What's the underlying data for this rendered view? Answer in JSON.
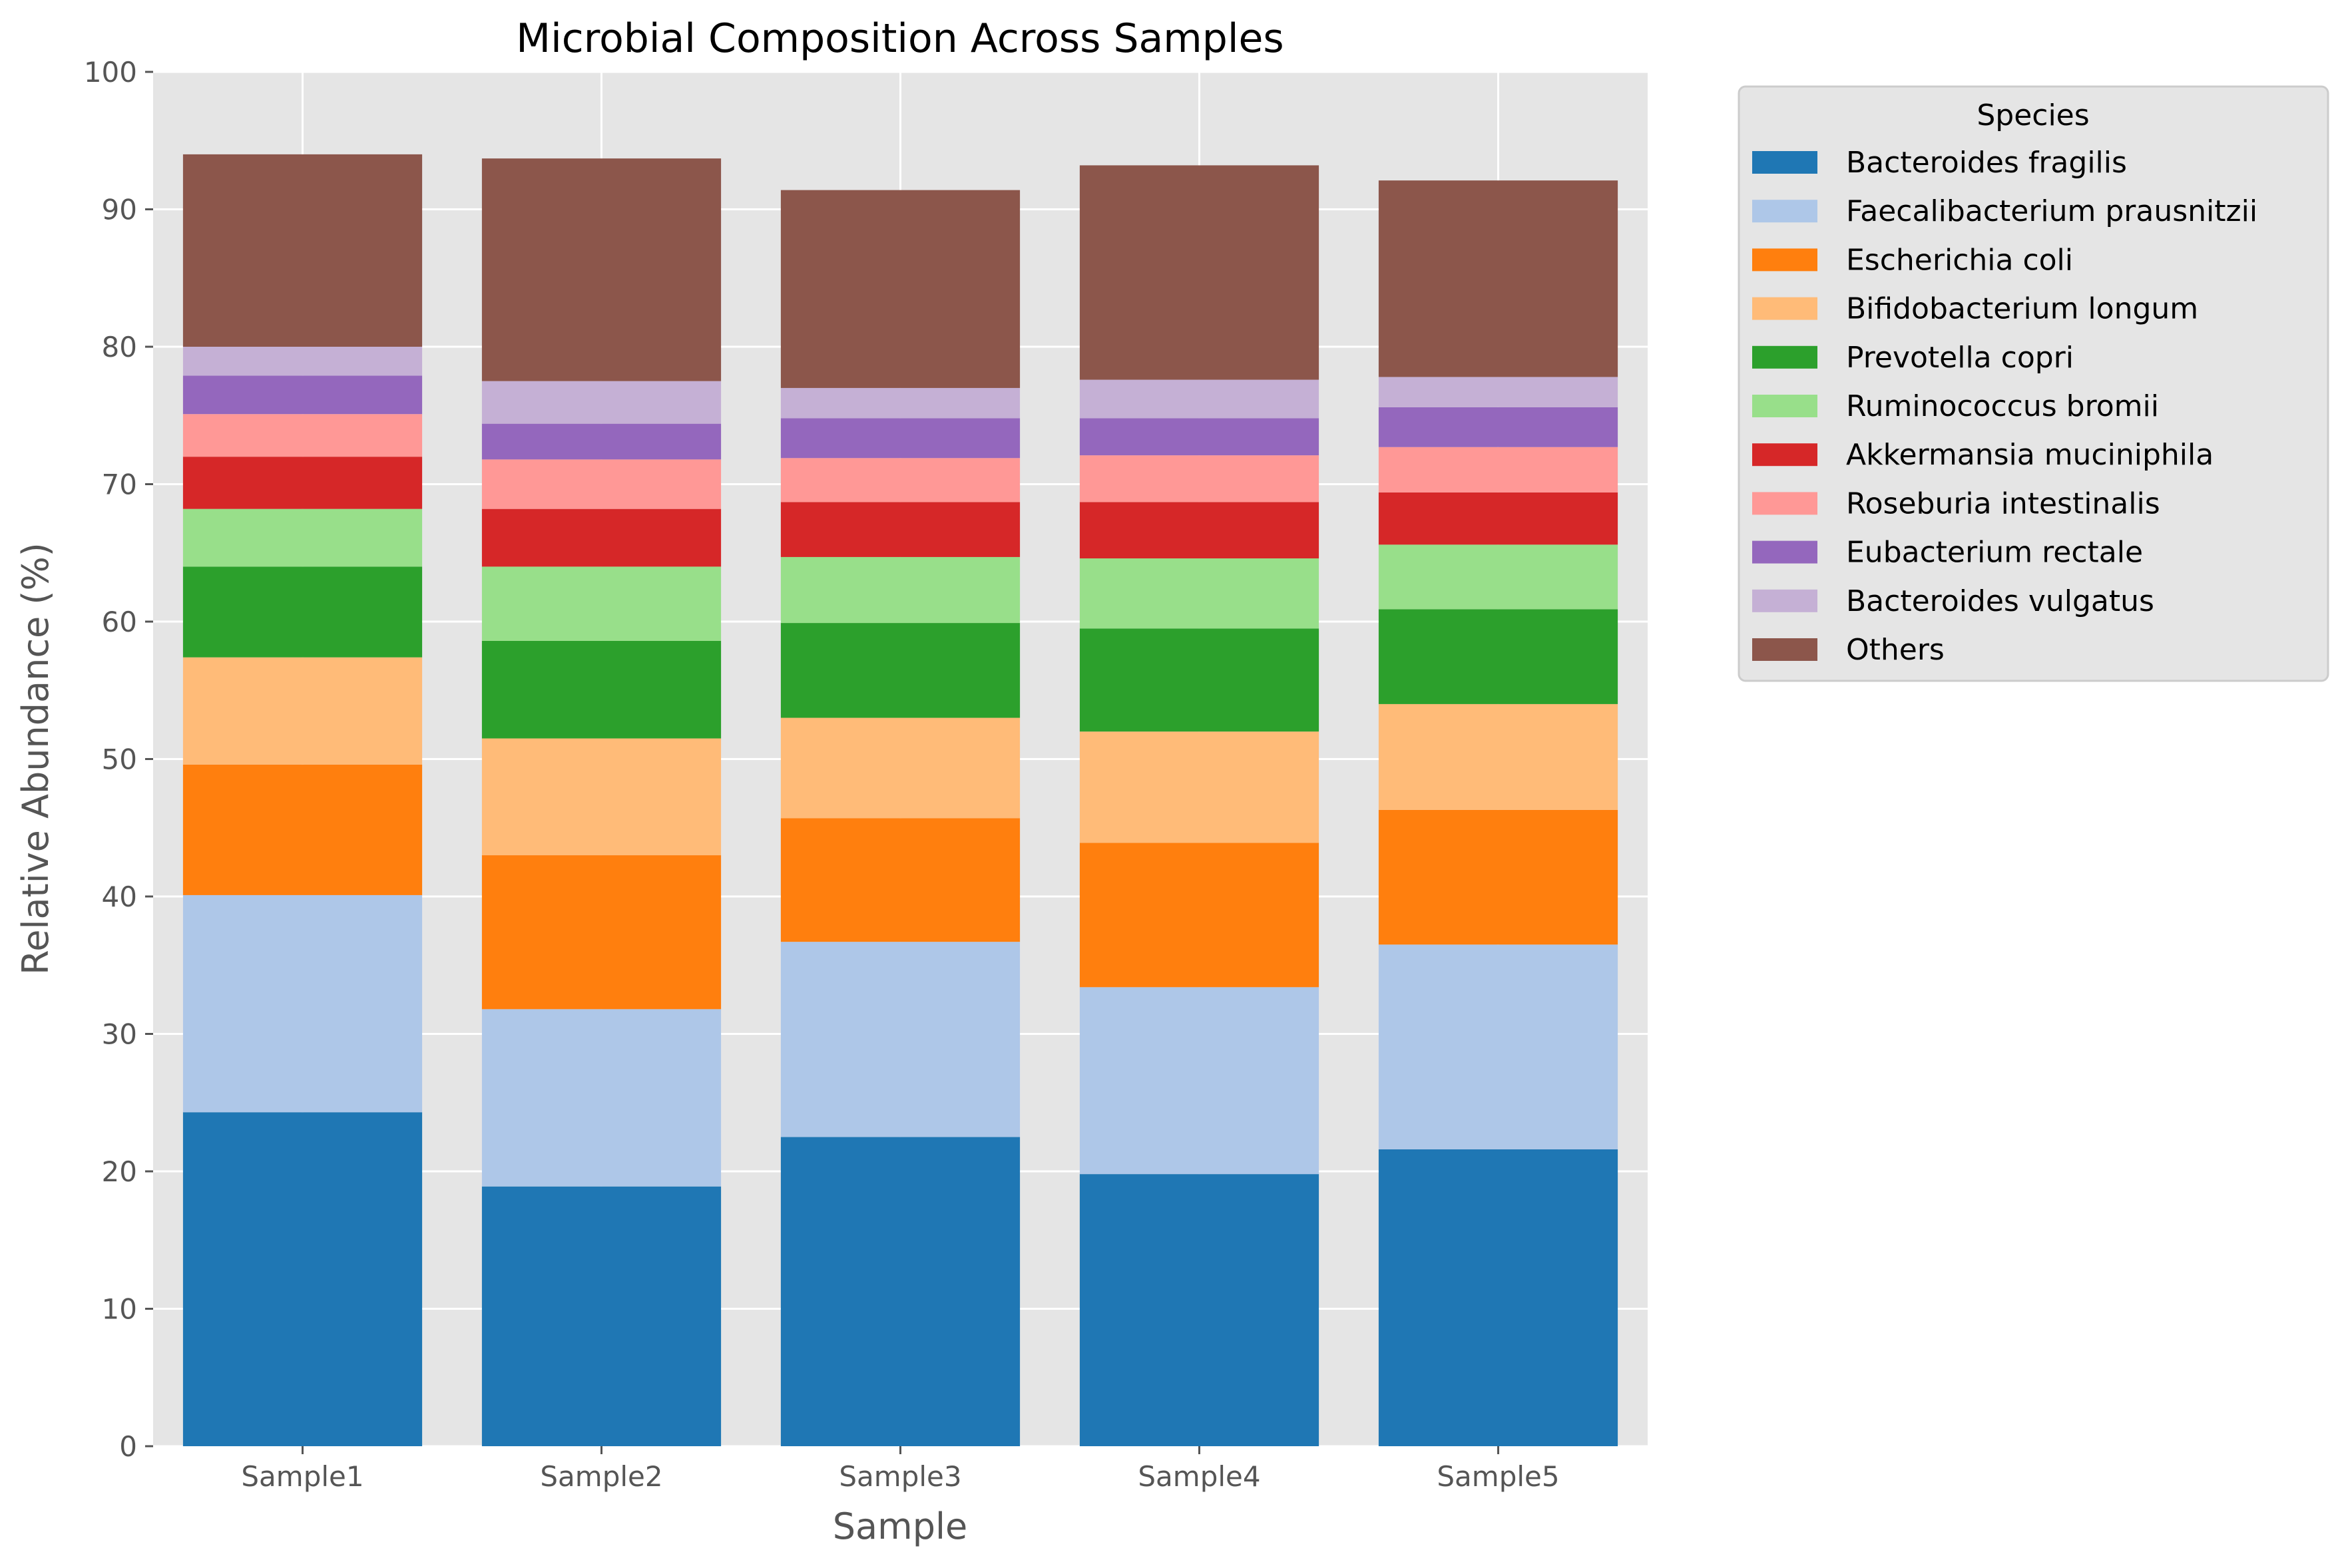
{
  "chart_data": {
    "type": "bar",
    "stacked": true,
    "title": "Microbial Composition Across Samples",
    "xlabel": "Sample",
    "ylabel": "Relative Abundance (%)",
    "ylim": [
      0,
      100
    ],
    "yticks": [
      0,
      10,
      20,
      30,
      40,
      50,
      60,
      70,
      80,
      90,
      100
    ],
    "grid": true,
    "categories": [
      "Sample1",
      "Sample2",
      "Sample3",
      "Sample4",
      "Sample5"
    ],
    "legend": {
      "title": "Species",
      "placement": "outside-right-top"
    },
    "series": [
      {
        "name": "Bacteroides fragilis",
        "color": "#1f77b4",
        "values": [
          24.3,
          18.9,
          22.5,
          19.8,
          21.6
        ]
      },
      {
        "name": "Faecalibacterium prausnitzii",
        "color": "#aec7e8",
        "values": [
          15.8,
          12.9,
          14.2,
          13.6,
          14.9
        ]
      },
      {
        "name": "Escherichia coli",
        "color": "#ff7f0e",
        "values": [
          9.5,
          11.2,
          9.0,
          10.5,
          9.8
        ]
      },
      {
        "name": "Bifidobacterium longum",
        "color": "#ffbb78",
        "values": [
          7.8,
          8.5,
          7.3,
          8.1,
          7.7
        ]
      },
      {
        "name": "Prevotella copri",
        "color": "#2ca02c",
        "values": [
          6.6,
          7.1,
          6.9,
          7.5,
          6.9
        ]
      },
      {
        "name": "Ruminococcus bromii",
        "color": "#98df8a",
        "values": [
          4.2,
          5.4,
          4.8,
          5.1,
          4.7
        ]
      },
      {
        "name": "Akkermansia muciniphila",
        "color": "#d62728",
        "values": [
          3.8,
          4.2,
          4.0,
          4.1,
          3.8
        ]
      },
      {
        "name": "Roseburia intestinalis",
        "color": "#ff9896",
        "values": [
          3.1,
          3.6,
          3.2,
          3.4,
          3.3
        ]
      },
      {
        "name": "Eubacterium rectale",
        "color": "#9467bd",
        "values": [
          2.8,
          2.6,
          2.9,
          2.7,
          2.9
        ]
      },
      {
        "name": "Bacteroides vulgatus",
        "color": "#c5b0d5",
        "values": [
          2.1,
          3.1,
          2.2,
          2.8,
          2.2
        ]
      },
      {
        "name": "Others",
        "color": "#8c564b",
        "values": [
          14.0,
          16.2,
          14.4,
          15.6,
          14.3
        ]
      }
    ]
  }
}
